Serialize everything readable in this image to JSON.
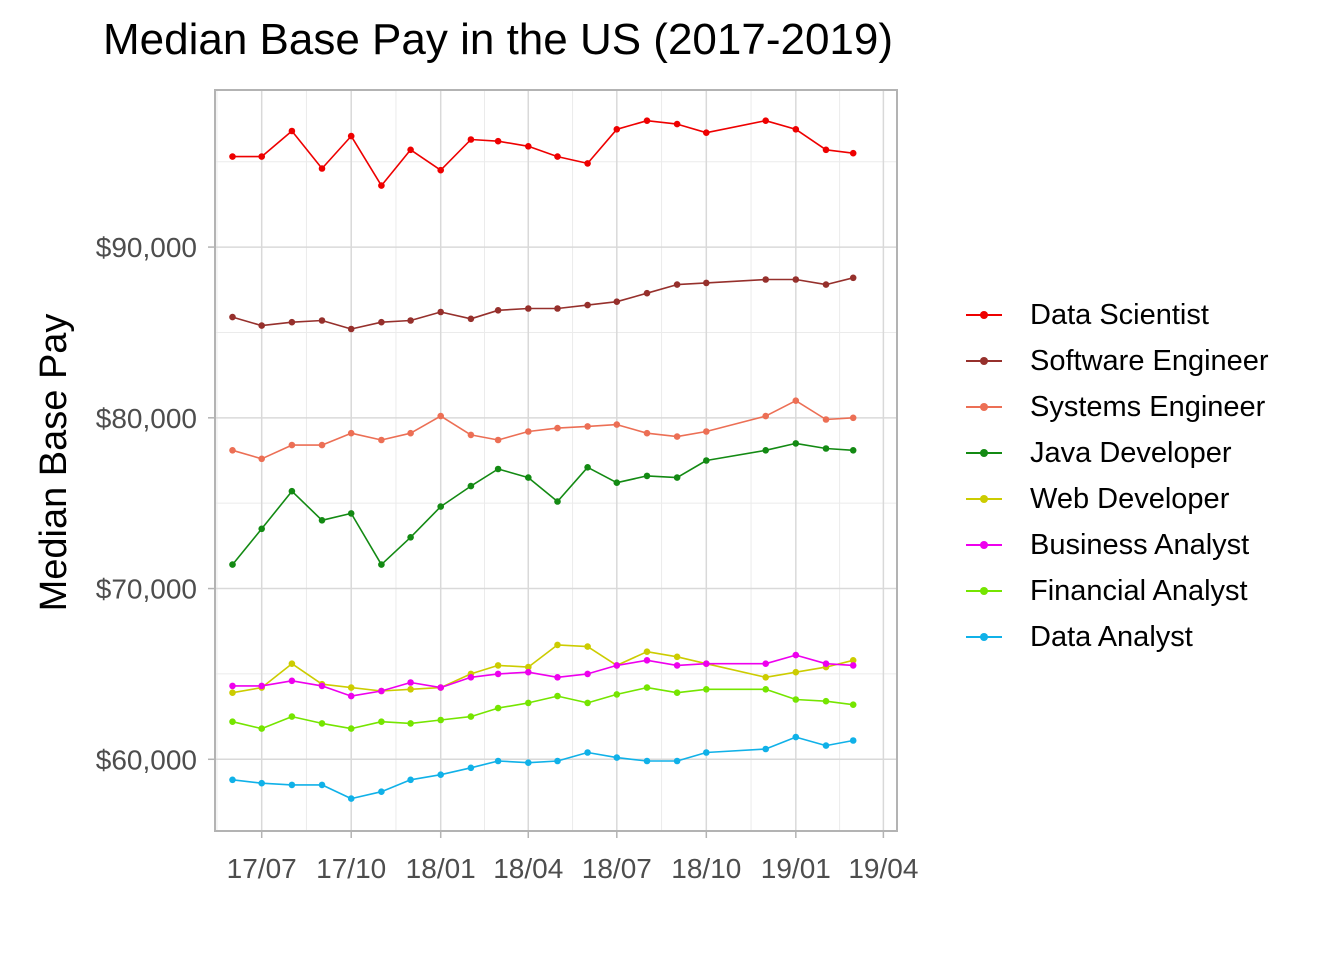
{
  "title": "Median Base Pay in the US (2017-2019)",
  "chart_data": {
    "type": "line",
    "title": "Median Base Pay in the US (2017-2019)",
    "xlabel": "",
    "ylabel": "Median Base Pay",
    "x": [
      "2017-06",
      "2017-07",
      "2017-08",
      "2017-09",
      "2017-10",
      "2017-11",
      "2017-12",
      "2018-01",
      "2018-02",
      "2018-03",
      "2018-04",
      "2018-05",
      "2018-06",
      "2018-07",
      "2018-08",
      "2018-09",
      "2018-10",
      "2018-12",
      "2019-01",
      "2019-02",
      "2019-03"
    ],
    "x_tick_labels": [
      "17/07",
      "17/10",
      "18/01",
      "18/04",
      "18/07",
      "18/10",
      "19/01",
      "19/04"
    ],
    "x_tick_values": [
      "2017-07",
      "2017-10",
      "2018-01",
      "2018-04",
      "2018-07",
      "2018-10",
      "2019-01",
      "2019-04"
    ],
    "xlim": [
      "2017-05-14",
      "2019-04-15"
    ],
    "y_tick_labels": [
      "$60,000",
      "$70,000",
      "$80,000",
      "$90,000"
    ],
    "y_tick_values": [
      60000,
      70000,
      80000,
      90000
    ],
    "ylim": [
      55800,
      99200
    ],
    "grid": true,
    "legend_position": "right",
    "series": [
      {
        "name": "Data Scientist",
        "color": "#ee0000",
        "values": [
          95300,
          95300,
          96800,
          94600,
          96500,
          93600,
          95700,
          94500,
          96300,
          96200,
          95900,
          95300,
          94900,
          96900,
          97400,
          97200,
          96700,
          97400,
          96900,
          95700,
          95500
        ]
      },
      {
        "name": "Software Engineer",
        "color": "#96302c",
        "values": [
          85900,
          85400,
          85600,
          85700,
          85200,
          85600,
          85700,
          86200,
          85800,
          86300,
          86400,
          86400,
          86600,
          86800,
          87300,
          87800,
          87900,
          88100,
          88100,
          87800,
          88200
        ]
      },
      {
        "name": "Systems Engineer",
        "color": "#ec6f55",
        "values": [
          78100,
          77600,
          78400,
          78400,
          79100,
          78700,
          79100,
          80100,
          79000,
          78700,
          79200,
          79400,
          79500,
          79600,
          79100,
          78900,
          79200,
          80100,
          81000,
          79900,
          80000
        ]
      },
      {
        "name": "Java Developer",
        "color": "#138a13",
        "values": [
          71400,
          73500,
          75700,
          74000,
          74400,
          71400,
          73000,
          74800,
          76000,
          77000,
          76500,
          75100,
          77100,
          76200,
          76600,
          76500,
          77500,
          78100,
          78500,
          78200,
          78100
        ]
      },
      {
        "name": "Web Developer",
        "color": "#cccc00",
        "values": [
          63900,
          64200,
          65600,
          64400,
          64200,
          64000,
          64100,
          64200,
          65000,
          65500,
          65400,
          66700,
          66600,
          65500,
          66300,
          66000,
          65600,
          64800,
          65100,
          65400,
          65800
        ]
      },
      {
        "name": "Business Analyst",
        "color": "#ee00ee",
        "values": [
          64300,
          64300,
          64600,
          64300,
          63700,
          64000,
          64500,
          64200,
          64800,
          65000,
          65100,
          64800,
          65000,
          65500,
          65800,
          65500,
          65600,
          65600,
          66100,
          65600,
          65500
        ]
      },
      {
        "name": "Financial Analyst",
        "color": "#75e500",
        "values": [
          62200,
          61800,
          62500,
          62100,
          61800,
          62200,
          62100,
          62300,
          62500,
          63000,
          63300,
          63700,
          63300,
          63800,
          64200,
          63900,
          64100,
          64100,
          63500,
          63400,
          63200
        ]
      },
      {
        "name": "Data Analyst",
        "color": "#10b1e8",
        "values": [
          58800,
          58600,
          58500,
          58500,
          57700,
          58100,
          58800,
          59100,
          59500,
          59900,
          59800,
          59900,
          60400,
          60100,
          59900,
          59900,
          60400,
          60600,
          61300,
          60800,
          61100
        ]
      }
    ]
  }
}
